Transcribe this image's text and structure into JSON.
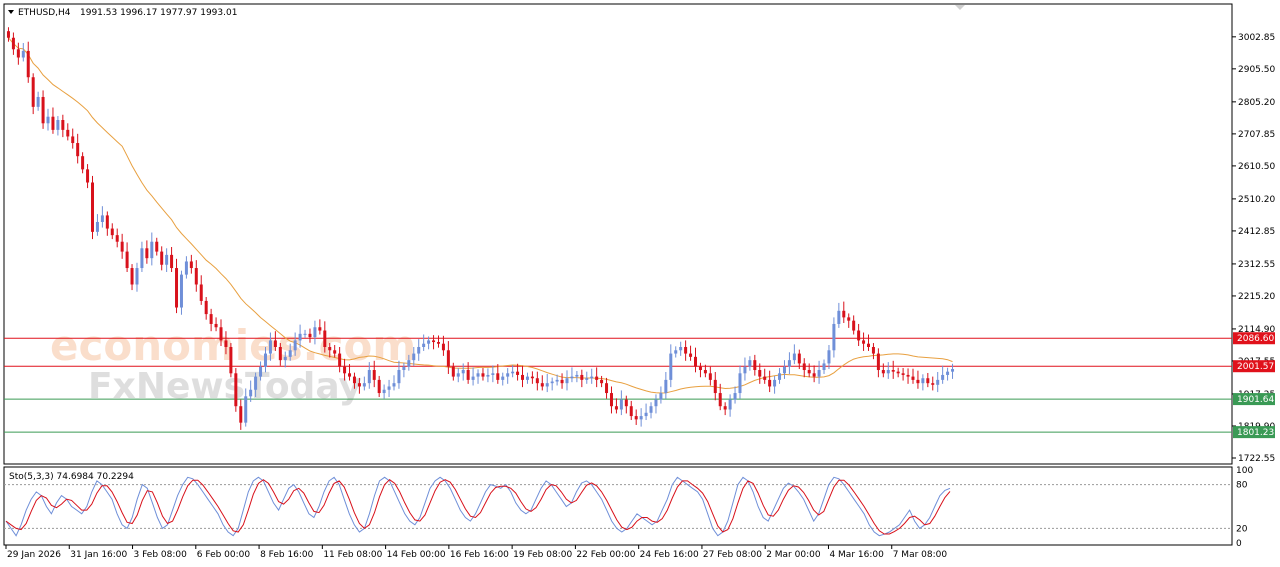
{
  "header": {
    "symbol": "ETHUSD,H4",
    "ohlc": "1991.53 1996.17 1977.97 1993.01"
  },
  "stoch_header": "Sto(5,3,3) 74.6984 70.2294",
  "watermark": {
    "line1": "economies.com",
    "line2": "FxNewsToday"
  },
  "colors": {
    "bull": "#6f8fd8",
    "bear": "#d8111b",
    "ma": "#e8a040",
    "resistance": "#e0111b",
    "support": "#3a9a55",
    "stoch_main": "#6f8fd8",
    "stoch_signal": "#d8111b"
  },
  "chart_data": {
    "type": "candlestick",
    "title": "ETHUSD,H4",
    "ylim": [
      1722.55,
      3054
    ],
    "price_ticks": [
      "3002.85",
      "2905.50",
      "2805.20",
      "2707.85",
      "2610.50",
      "2510.20",
      "2412.85",
      "2312.55",
      "2215.20",
      "2114.90",
      "2017.55",
      "1917.25",
      "1819.90",
      "1722.55"
    ],
    "date_ticks": [
      "29 Jan 2026",
      "31 Jan 16:00",
      "3 Feb 08:00",
      "6 Feb 00:00",
      "8 Feb 16:00",
      "11 Feb 08:00",
      "14 Feb 00:00",
      "16 Feb 16:00",
      "19 Feb 08:00",
      "22 Feb 00:00",
      "24 Feb 16:00",
      "27 Feb 08:00",
      "2 Mar 00:00",
      "4 Mar 16:00",
      "7 Mar 08:00"
    ],
    "levels": [
      {
        "label": "2086.60",
        "value": 2086.6,
        "kind": "resistance"
      },
      {
        "label": "2001.57",
        "value": 2001.57,
        "kind": "resistance"
      },
      {
        "label": "1901.64",
        "value": 1901.64,
        "kind": "support"
      },
      {
        "label": "1801.23",
        "value": 1801.23,
        "kind": "support"
      }
    ],
    "closes": [
      3000,
      2965,
      2940,
      2960,
      2880,
      2790,
      2820,
      2740,
      2760,
      2720,
      2750,
      2720,
      2700,
      2680,
      2640,
      2600,
      2560,
      2410,
      2440,
      2460,
      2420,
      2400,
      2380,
      2350,
      2300,
      2250,
      2300,
      2360,
      2330,
      2380,
      2350,
      2310,
      2340,
      2300,
      2180,
      2280,
      2320,
      2300,
      2250,
      2200,
      2160,
      2130,
      2120,
      2080,
      2060,
      1980,
      1880,
      1830,
      1910,
      1930,
      1970,
      2000,
      2040,
      2080,
      2060,
      2020,
      2030,
      2050,
      2080,
      2100,
      2100,
      2090,
      2120,
      2110,
      2060,
      2050,
      2040,
      2000,
      1980,
      1970,
      1950,
      1940,
      1950,
      1990,
      1960,
      1920,
      1930,
      1940,
      1950,
      1990,
      2000,
      2020,
      2040,
      2060,
      2070,
      2080,
      2075,
      2070,
      2050,
      2000,
      1970,
      1980,
      1990,
      1960,
      1970,
      1980,
      1970,
      1975,
      1980,
      1960,
      1970,
      1980,
      1985,
      1975,
      1960,
      1970,
      1965,
      1950,
      1940,
      1950,
      1955,
      1960,
      1950,
      1965,
      1970,
      1975,
      1960,
      1965,
      1970,
      1960,
      1950,
      1920,
      1880,
      1870,
      1900,
      1880,
      1850,
      1840,
      1850,
      1860,
      1880,
      1900,
      1920,
      1960,
      2040,
      2050,
      2060,
      2040,
      2030,
      2000,
      1990,
      1980,
      1960,
      1920,
      1880,
      1870,
      1900,
      1920,
      1980,
      2000,
      2020,
      1990,
      1970,
      1960,
      1940,
      1960,
      1980,
      2000,
      2020,
      2040,
      2010,
      1990,
      1980,
      1970,
      1990,
      2010,
      2050,
      2130,
      2170,
      2150,
      2140,
      2110,
      2080,
      2070,
      2060,
      2040,
      1990,
      1980,
      1990,
      1985,
      1980,
      1975,
      1970,
      1960,
      1950,
      1965,
      1950,
      1945,
      1960,
      1975,
      1985,
      1993
    ]
  },
  "stoch_data": {
    "ylim": [
      0,
      100
    ],
    "ticks": [
      "100",
      "80",
      "20",
      "0"
    ],
    "levels": [
      80,
      20
    ],
    "main": [
      30,
      20,
      10,
      25,
      45,
      60,
      70,
      65,
      50,
      40,
      55,
      65,
      60,
      50,
      45,
      40,
      50,
      70,
      85,
      80,
      70,
      60,
      40,
      25,
      20,
      35,
      60,
      80,
      75,
      55,
      35,
      20,
      25,
      45,
      65,
      80,
      90,
      88,
      80,
      70,
      60,
      50,
      40,
      25,
      15,
      10,
      20,
      45,
      70,
      85,
      90,
      85,
      70,
      55,
      45,
      60,
      75,
      80,
      70,
      55,
      40,
      35,
      50,
      70,
      85,
      90,
      80,
      60,
      40,
      25,
      15,
      20,
      40,
      65,
      85,
      90,
      85,
      70,
      55,
      40,
      30,
      25,
      35,
      55,
      75,
      85,
      90,
      85,
      75,
      60,
      45,
      35,
      30,
      40,
      55,
      70,
      80,
      78,
      75,
      80,
      70,
      55,
      45,
      40,
      45,
      60,
      75,
      85,
      80,
      70,
      60,
      50,
      55,
      70,
      82,
      85,
      80,
      70,
      60,
      45,
      30,
      20,
      15,
      20,
      30,
      40,
      35,
      30,
      25,
      30,
      45,
      60,
      80,
      90,
      85,
      80,
      75,
      70,
      60,
      40,
      20,
      10,
      15,
      30,
      55,
      80,
      90,
      85,
      70,
      50,
      35,
      30,
      45,
      60,
      75,
      82,
      78,
      70,
      60,
      45,
      30,
      40,
      60,
      80,
      90,
      88,
      80,
      70,
      60,
      50,
      40,
      25,
      15,
      10,
      12,
      15,
      20,
      25,
      35,
      45,
      30,
      20,
      25,
      35,
      50,
      65,
      72,
      75
    ]
  },
  "icons": {
    "collapse": "triangle-down-icon",
    "scroll_marker": "triangle-down-icon"
  }
}
